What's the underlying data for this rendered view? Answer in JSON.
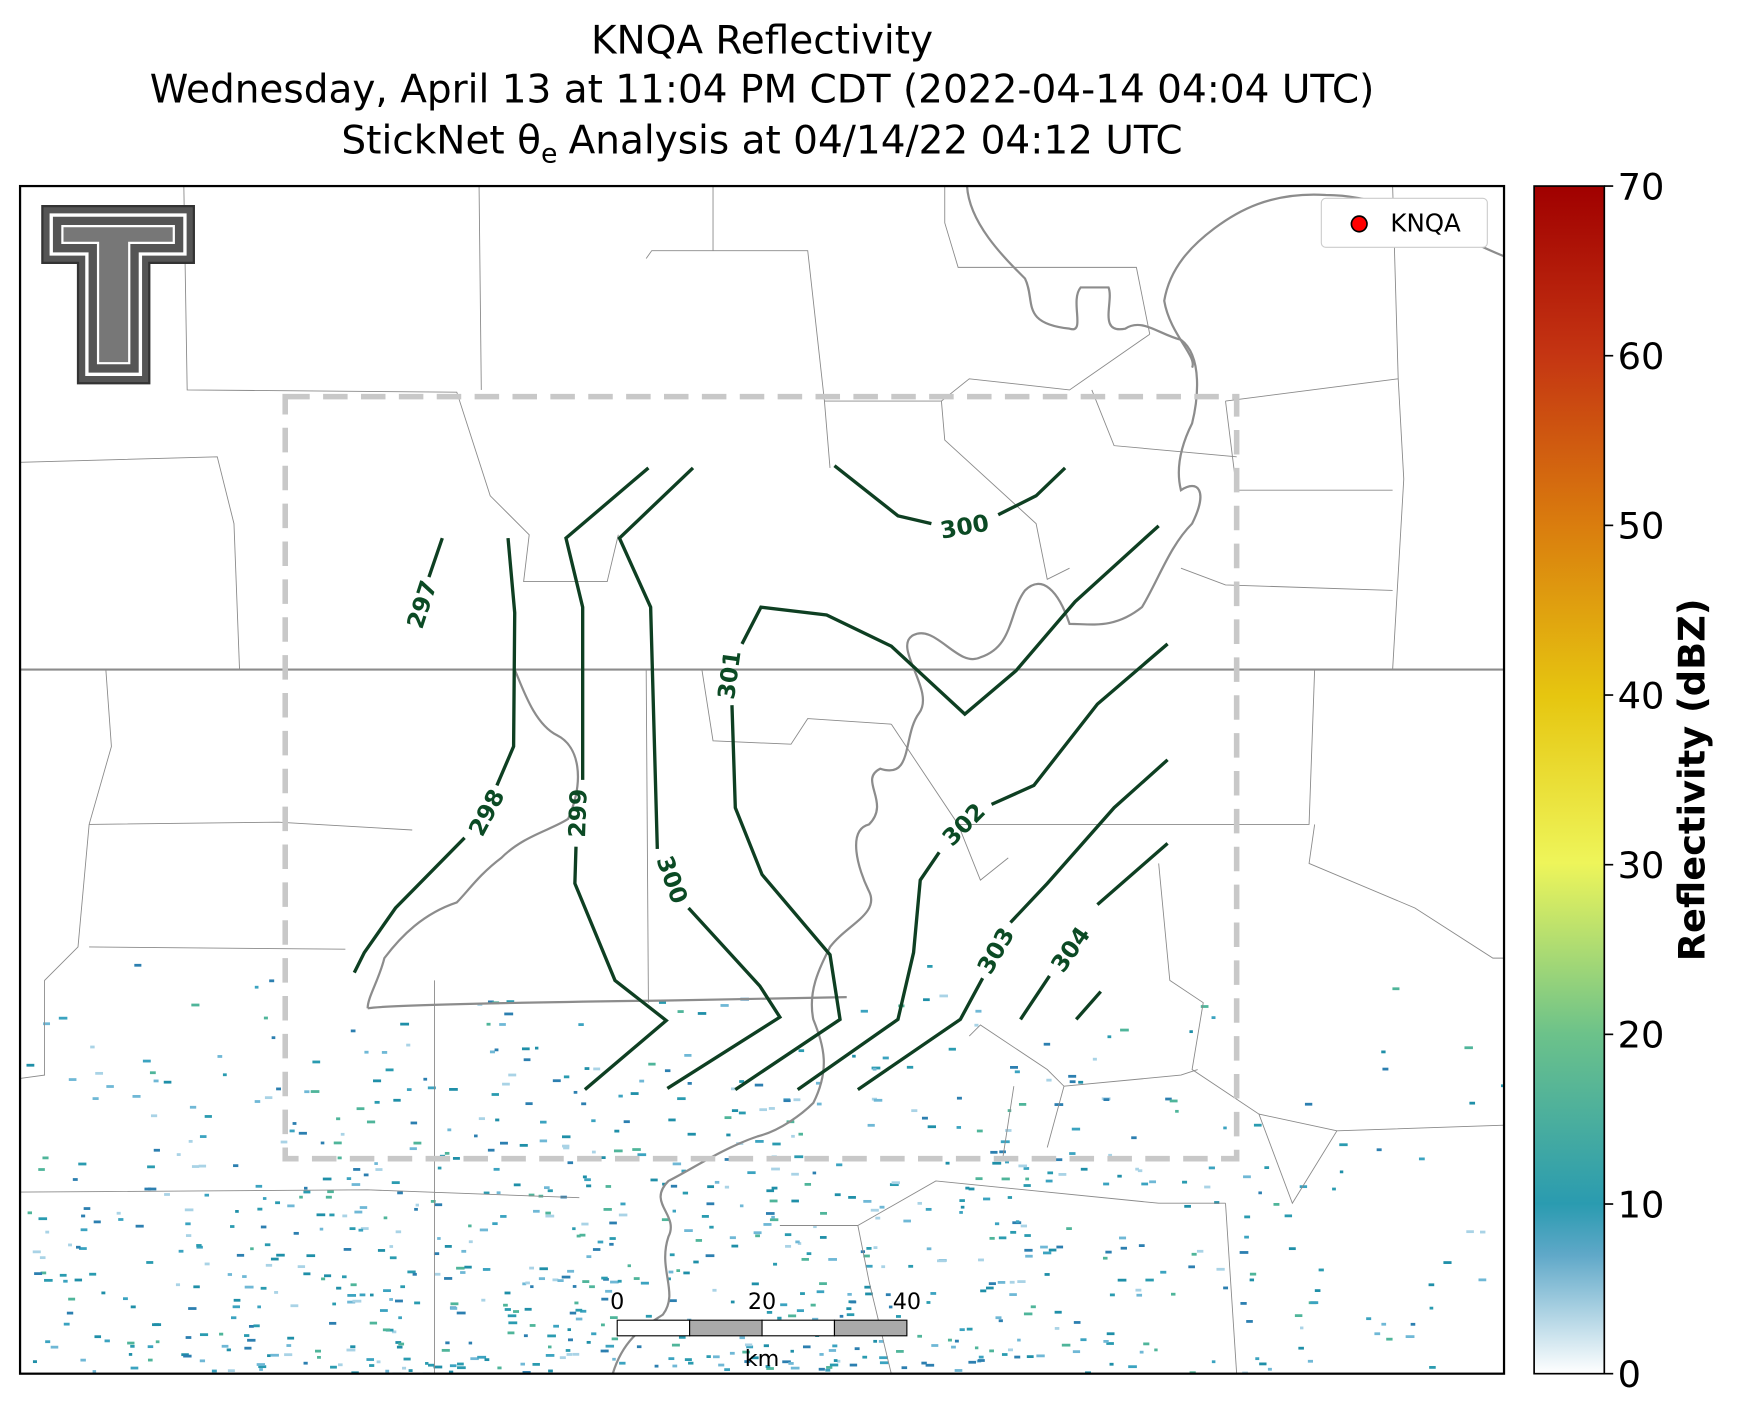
{
  "header": {
    "title": "KNQA Reflectivity",
    "subtitle": "Wednesday, April 13 at 11:04 PM CDT (2022-04-14 04:04 UTC)",
    "analysis_prefix": "StickNet θ",
    "analysis_subscript": "e",
    "analysis_suffix": "Analysis at 04/14/22 04:12 UTC"
  },
  "legend": {
    "label": "KNQA"
  },
  "colorbar": {
    "label": "Reflectivity (dBZ)",
    "range": [
      0,
      70
    ],
    "ticks": [
      0,
      10,
      20,
      30,
      40,
      50,
      60,
      70
    ]
  },
  "scale_bar": {
    "ticks": [
      0,
      20,
      40
    ],
    "unit": "km"
  },
  "contours": [
    {
      "label": 297
    },
    {
      "label": 298
    },
    {
      "label": 299
    },
    {
      "label": 300
    },
    {
      "label": 300
    },
    {
      "label": 301
    },
    {
      "label": 302
    },
    {
      "label": 303
    },
    {
      "label": 304
    }
  ]
}
